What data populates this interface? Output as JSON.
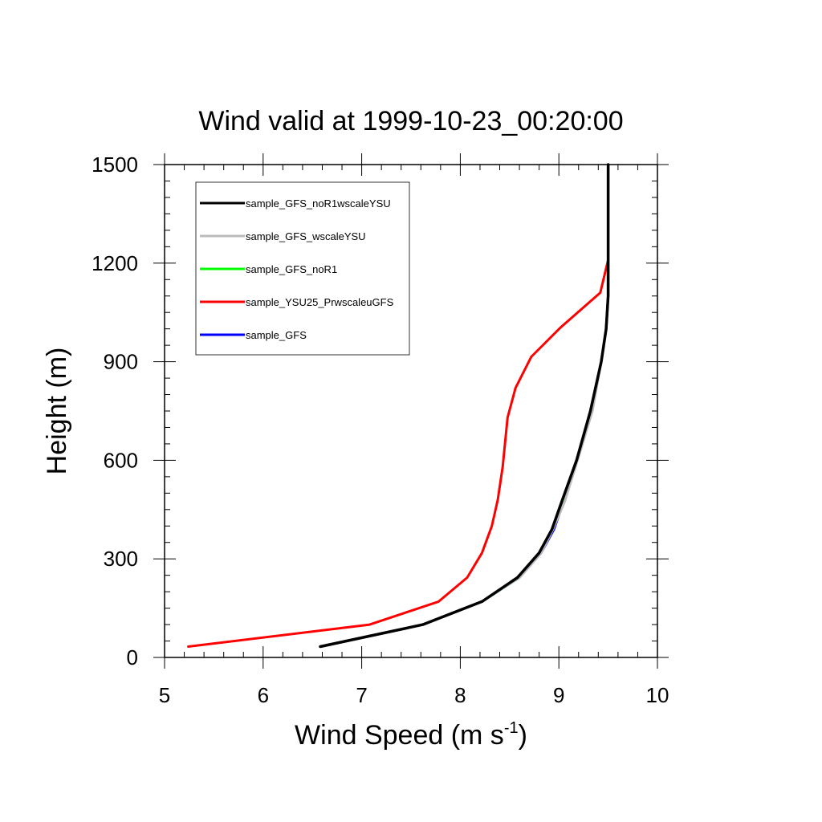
{
  "chart_data": {
    "type": "line",
    "title": "Wind valid at 1999-10-23_00:20:00",
    "xlabel_main": "Wind Speed (m s",
    "xlabel_sup": "-1",
    "xlabel_end": ")",
    "ylabel": "Height (m)",
    "xlim": [
      5,
      10
    ],
    "ylim": [
      0,
      1500
    ],
    "x_ticks": [
      5,
      6,
      7,
      8,
      9,
      10
    ],
    "x_tick_labels": [
      "5",
      "6",
      "7",
      "8",
      "9",
      "10"
    ],
    "y_ticks": [
      0,
      300,
      600,
      900,
      1200,
      1500
    ],
    "y_tick_labels": [
      "0",
      "300",
      "600",
      "900",
      "1200",
      "1500"
    ],
    "legend_position": "top-left",
    "series": [
      {
        "name": "sample_GFS",
        "color": "#0000ff",
        "points": [
          [
            6.58,
            33
          ],
          [
            7.62,
            100
          ],
          [
            8.22,
            170
          ],
          [
            8.6,
            243
          ],
          [
            8.82,
            318
          ],
          [
            8.95,
            390
          ],
          [
            9.05,
            475
          ],
          [
            9.2,
            620
          ],
          [
            9.33,
            750
          ],
          [
            9.43,
            900
          ],
          [
            9.48,
            1000
          ],
          [
            9.5,
            1100
          ],
          [
            9.5,
            1200
          ],
          [
            9.5,
            1500
          ]
        ]
      },
      {
        "name": "sample_YSU25_PrwscaleuGFS",
        "color": "#ff0000",
        "points": [
          [
            5.24,
            33
          ],
          [
            7.08,
            100
          ],
          [
            7.78,
            170
          ],
          [
            8.07,
            243
          ],
          [
            8.22,
            318
          ],
          [
            8.32,
            400
          ],
          [
            8.38,
            480
          ],
          [
            8.43,
            580
          ],
          [
            8.48,
            730
          ],
          [
            8.56,
            820
          ],
          [
            8.72,
            915
          ],
          [
            9.02,
            1005
          ],
          [
            9.42,
            1110
          ],
          [
            9.5,
            1210
          ]
        ]
      },
      {
        "name": "sample_GFS_noR1",
        "color": "#00ff00",
        "points": [
          [
            6.58,
            33
          ],
          [
            7.62,
            100
          ],
          [
            8.22,
            170
          ],
          [
            8.6,
            243
          ],
          [
            8.81,
            318
          ],
          [
            8.93,
            390
          ],
          [
            9.04,
            475
          ],
          [
            9.18,
            600
          ],
          [
            9.32,
            750
          ],
          [
            9.43,
            900
          ],
          [
            9.48,
            1000
          ],
          [
            9.5,
            1100
          ],
          [
            9.5,
            1200
          ],
          [
            9.5,
            1500
          ]
        ]
      },
      {
        "name": "sample_GFS_wscaleYSU",
        "color": "#bbbbbb",
        "points": [
          [
            6.58,
            33
          ],
          [
            7.62,
            100
          ],
          [
            8.22,
            170
          ],
          [
            8.6,
            243
          ],
          [
            8.82,
            318
          ],
          [
            8.94,
            390
          ],
          [
            9.06,
            475
          ],
          [
            9.21,
            620
          ],
          [
            9.34,
            750
          ],
          [
            9.43,
            900
          ],
          [
            9.48,
            1000
          ],
          [
            9.5,
            1100
          ],
          [
            9.5,
            1200
          ],
          [
            9.5,
            1500
          ]
        ]
      },
      {
        "name": "sample_GFS_noR1wscaleYSU",
        "color": "#000000",
        "points": [
          [
            6.58,
            33
          ],
          [
            7.62,
            100
          ],
          [
            8.22,
            170
          ],
          [
            8.58,
            243
          ],
          [
            8.8,
            318
          ],
          [
            8.93,
            390
          ],
          [
            9.03,
            475
          ],
          [
            9.18,
            600
          ],
          [
            9.32,
            750
          ],
          [
            9.43,
            900
          ],
          [
            9.48,
            1000
          ],
          [
            9.5,
            1100
          ],
          [
            9.5,
            1200
          ],
          [
            9.5,
            1500
          ]
        ]
      }
    ],
    "legend_order": [
      "sample_GFS_noR1wscaleYSU",
      "sample_GFS_wscaleYSU",
      "sample_GFS_noR1",
      "sample_YSU25_PrwscaleuGFS",
      "sample_GFS"
    ]
  }
}
